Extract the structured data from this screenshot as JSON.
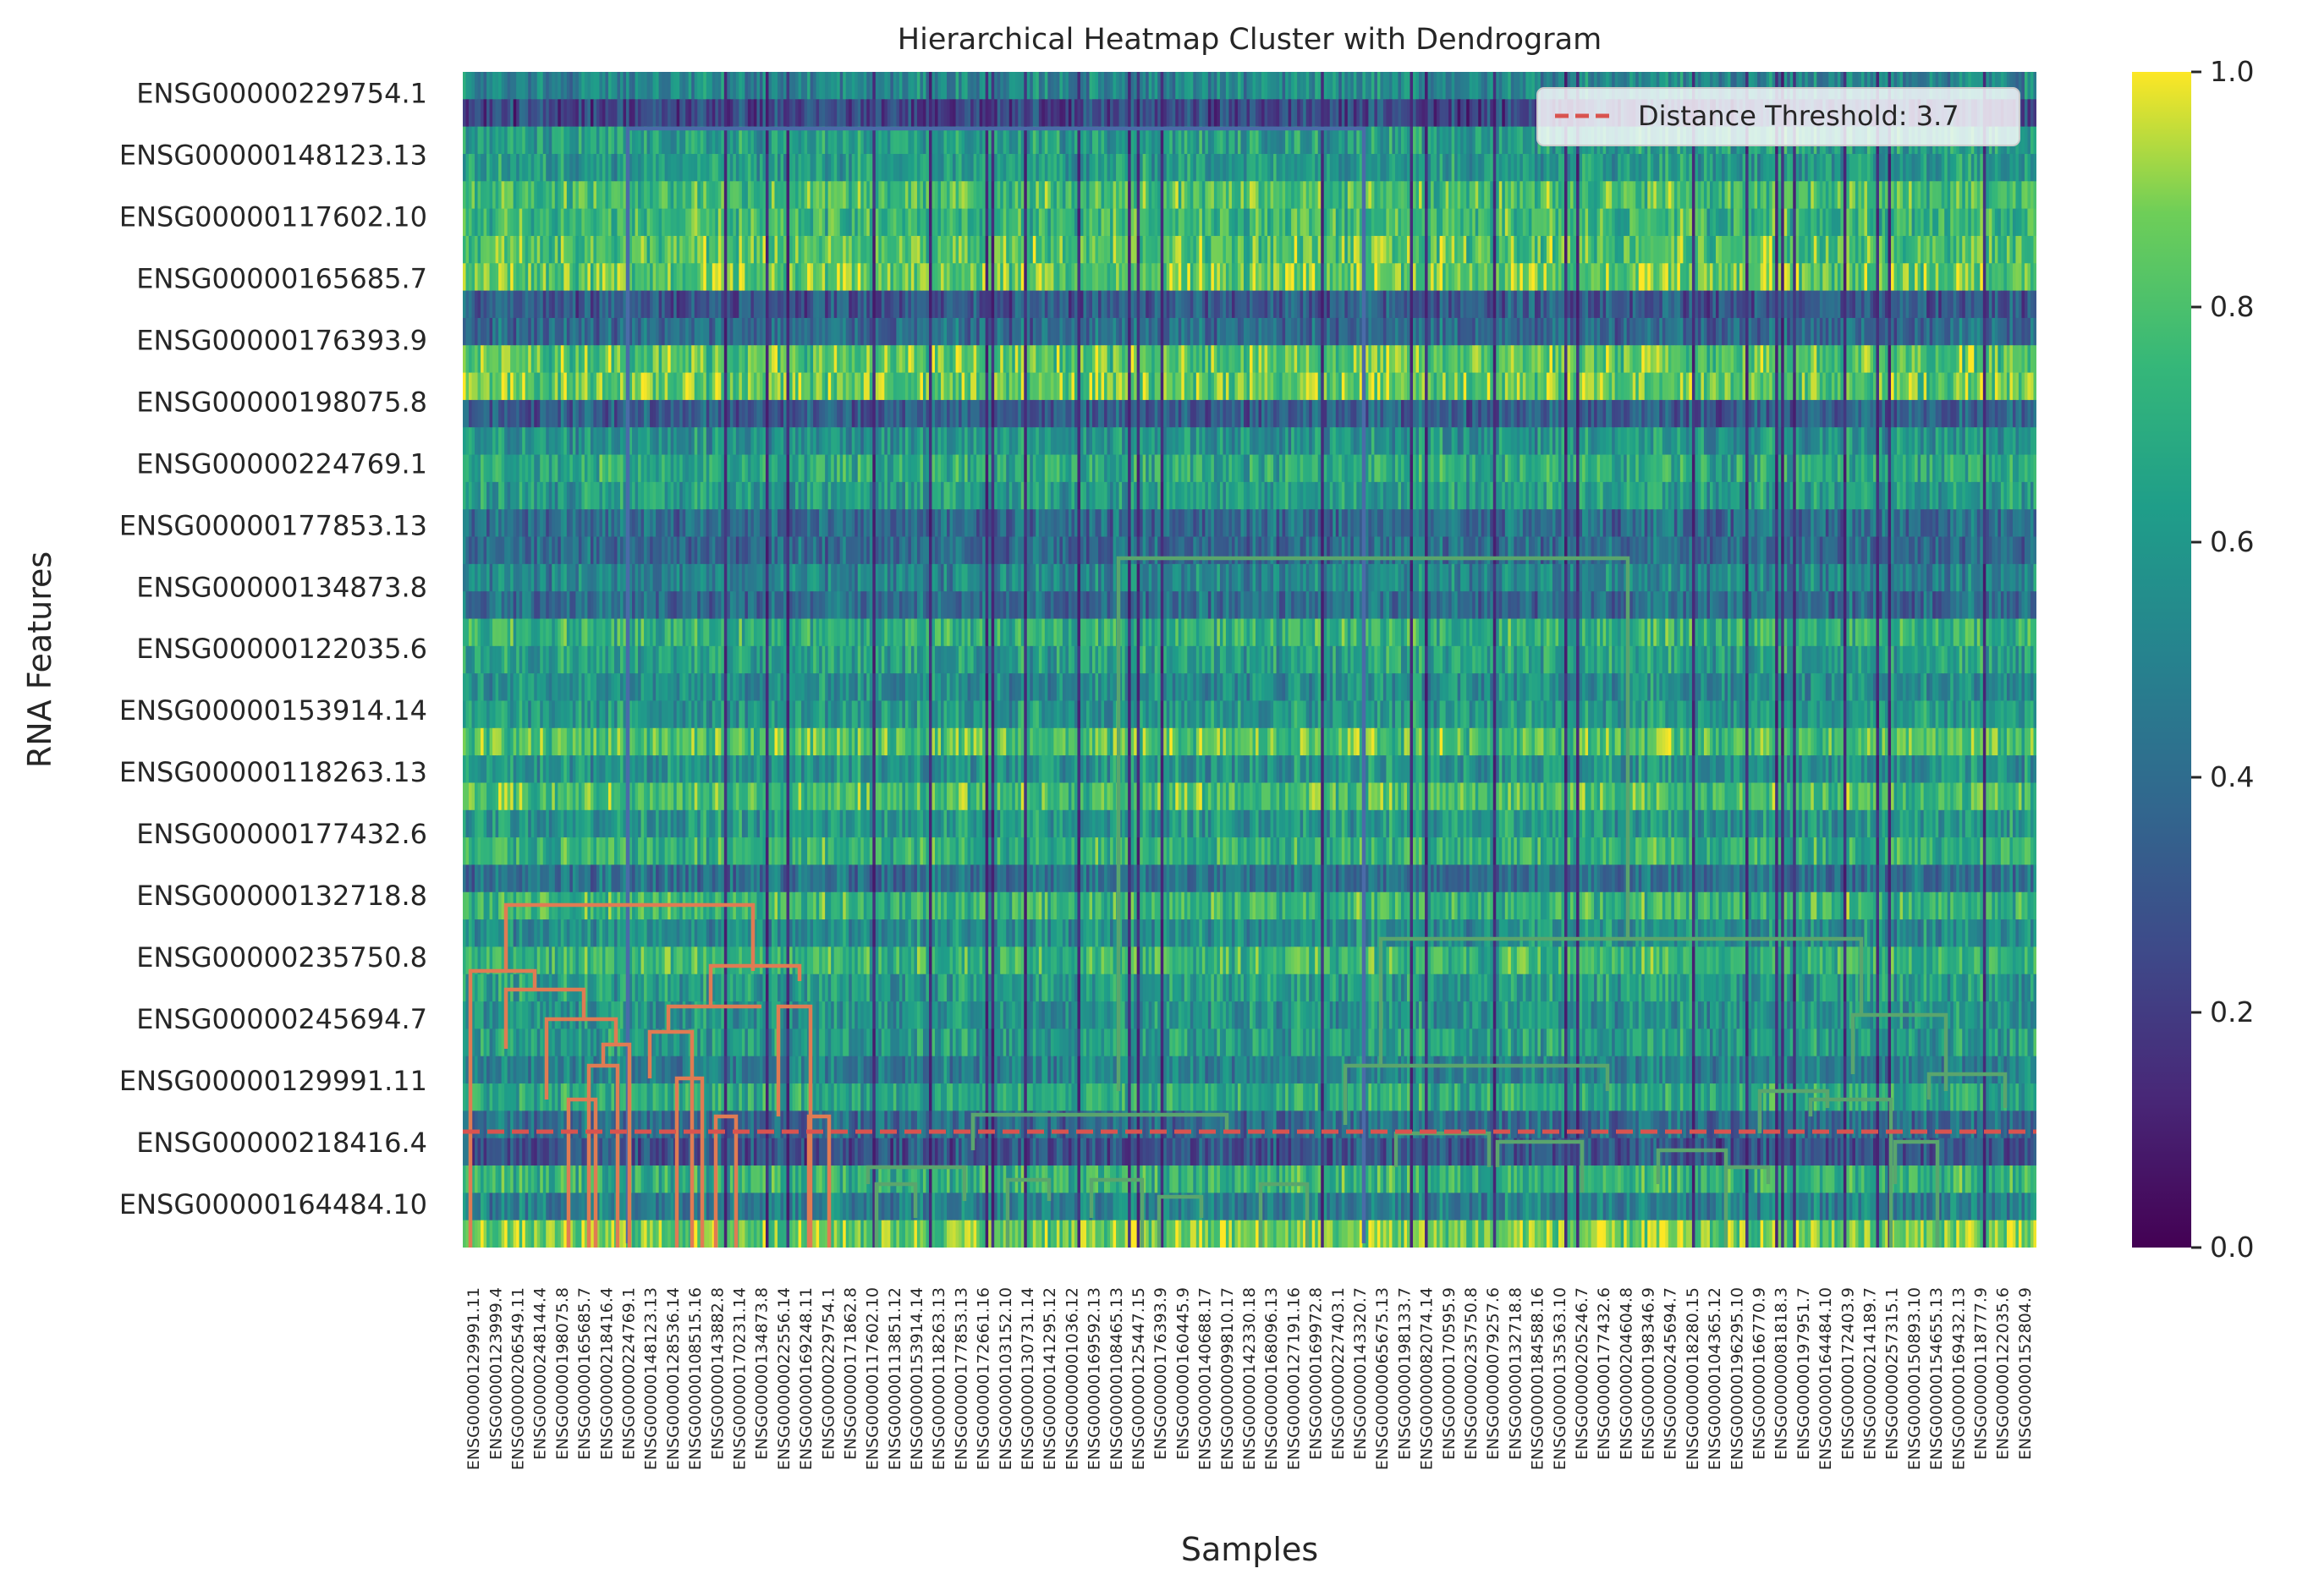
{
  "chart_data": {
    "type": "heatmap",
    "title": "Hierarchical Heatmap Cluster with Dendrogram",
    "xlabel": "Samples",
    "ylabel": "RNA Features",
    "colormap": "viridis",
    "colorbar": {
      "range": [
        0.0,
        1.0
      ],
      "ticks": [
        "0.0",
        "0.2",
        "0.4",
        "0.6",
        "0.8",
        "1.0"
      ]
    },
    "y_tick_labels": [
      "ENSG00000229754.1",
      "ENSG00000148123.13",
      "ENSG00000117602.10",
      "ENSG00000165685.7",
      "ENSG00000176393.9",
      "ENSG00000198075.8",
      "ENSG00000224769.1",
      "ENSG00000177853.13",
      "ENSG00000134873.8",
      "ENSG00000122035.6",
      "ENSG00000153914.14",
      "ENSG00000118263.13",
      "ENSG00000177432.6",
      "ENSG00000132718.8",
      "ENSG00000235750.8",
      "ENSG00000245694.7",
      "ENSG00000129991.11",
      "ENSG00000218416.4",
      "ENSG00000164484.10"
    ],
    "x_tick_labels": [
      "ENSG00000129991.11",
      "ENSG00000123999.4",
      "ENSG00000206549.11",
      "ENSG00000248144.4",
      "ENSG00000198075.8",
      "ENSG00000165685.7",
      "ENSG00000218416.4",
      "ENSG00000224769.1",
      "ENSG00000148123.13",
      "ENSG00000128536.14",
      "ENSG00000108515.16",
      "ENSG00000143882.8",
      "ENSG00000170231.14",
      "ENSG00000134873.8",
      "ENSG00000022556.14",
      "ENSG00000169248.11",
      "ENSG00000229754.1",
      "ENSG00000171862.8",
      "ENSG00000117602.10",
      "ENSG00000113851.12",
      "ENSG00000153914.14",
      "ENSG00000118263.13",
      "ENSG00000177853.13",
      "ENSG00000172661.16",
      "ENSG00000103152.10",
      "ENSG00000130731.14",
      "ENSG00000141295.12",
      "ENSG00000001036.12",
      "ENSG00000169592.13",
      "ENSG00000108465.13",
      "ENSG00000125447.15",
      "ENSG00000176393.9",
      "ENSG00000160445.9",
      "ENSG00000140688.17",
      "ENSG00000099810.17",
      "ENSG00000142330.18",
      "ENSG00000168096.13",
      "ENSG00000127191.16",
      "ENSG00000169972.8",
      "ENSG00000227403.1",
      "ENSG00000143320.7",
      "ENSG00000065675.13",
      "ENSG00000198133.7",
      "ENSG00000082074.14",
      "ENSG00000170595.9",
      "ENSG00000235750.8",
      "ENSG00000079257.6",
      "ENSG00000132718.8",
      "ENSG00000184588.16",
      "ENSG00000135363.10",
      "ENSG00000205246.7",
      "ENSG00000177432.6",
      "ENSG00000204604.8",
      "ENSG00000198346.9",
      "ENSG00000245694.7",
      "ENSG00000018280.15",
      "ENSG00000104365.12",
      "ENSG00000196295.10",
      "ENSG00000166770.9",
      "ENSG00000081818.3",
      "ENSG00000197951.7",
      "ENSG00000164484.10",
      "ENSG00000172403.9",
      "ENSG00000214189.7",
      "ENSG00000257315.1",
      "ENSG00000150893.10",
      "ENSG00000154655.13",
      "ENSG00000169432.13",
      "ENSG00000118777.9",
      "ENSG00000122035.6",
      "ENSG00000152804.9"
    ],
    "grid": false,
    "legend": {
      "placement": "top-right",
      "entries": [
        {
          "label": "Distance Threshold: 3.7",
          "color": "#d9534f",
          "style": "dashed"
        }
      ]
    },
    "distance_threshold": 3.7,
    "row_bands": [
      0.52,
      0.25,
      0.62,
      0.62,
      0.78,
      0.74,
      0.8,
      0.84,
      0.32,
      0.4,
      0.82,
      0.84,
      0.34,
      0.58,
      0.68,
      0.62,
      0.4,
      0.4,
      0.52,
      0.4,
      0.72,
      0.64,
      0.56,
      0.6,
      0.8,
      0.58,
      0.78,
      0.6,
      0.72,
      0.42,
      0.74,
      0.56,
      0.74,
      0.62,
      0.58,
      0.62,
      0.5,
      0.68,
      0.4,
      0.3,
      0.72,
      0.5,
      0.86
    ],
    "sample_columns": 530,
    "dendrogram_colors": {
      "cluster_1": "#e07b53",
      "cluster_2": "#5aa56d",
      "root": "#4a6ba8"
    }
  }
}
